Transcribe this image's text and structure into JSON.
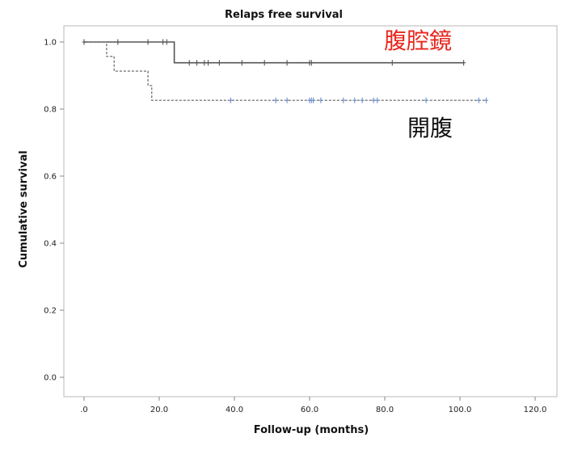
{
  "chart_data": {
    "type": "line",
    "title": "Relaps free survival",
    "xlabel": "Follow-up (months)",
    "ylabel": "Cumulative survival",
    "xlim": [
      0,
      120
    ],
    "ylim": [
      0,
      1.0
    ],
    "x_ticks": [
      0,
      20,
      40,
      60,
      80,
      100,
      120
    ],
    "x_tick_labels": [
      ".0",
      "20.0",
      "40.0",
      "60.0",
      "80.0",
      "100.0",
      "120.0"
    ],
    "y_ticks": [
      0,
      0.2,
      0.4,
      0.6,
      0.8,
      1.0
    ],
    "y_tick_labels": [
      "0.0",
      "0.2",
      "0.4",
      "0.6",
      "0.8",
      "1.0"
    ],
    "grid": false,
    "colors": {
      "laparoscopic": "#555555",
      "open": "#7a7a7a",
      "open_censor": "#6f8fc8",
      "annotation_red": "#e8261c",
      "annotation_black": "#111111"
    },
    "series": [
      {
        "name": "腹腔鏡",
        "style": "solid",
        "steps": [
          [
            0,
            1.0
          ],
          [
            24,
            1.0
          ],
          [
            24,
            0.938
          ],
          [
            101,
            0.938
          ]
        ],
        "censored": [
          {
            "x": 0,
            "y": 1.0
          },
          {
            "x": 9,
            "y": 1.0
          },
          {
            "x": 17,
            "y": 1.0
          },
          {
            "x": 21,
            "y": 1.0
          },
          {
            "x": 22,
            "y": 1.0
          },
          {
            "x": 28,
            "y": 0.938
          },
          {
            "x": 30,
            "y": 0.938
          },
          {
            "x": 32,
            "y": 0.938
          },
          {
            "x": 33,
            "y": 0.938
          },
          {
            "x": 36,
            "y": 0.938
          },
          {
            "x": 42,
            "y": 0.938
          },
          {
            "x": 48,
            "y": 0.938
          },
          {
            "x": 54,
            "y": 0.938
          },
          {
            "x": 60,
            "y": 0.938
          },
          {
            "x": 60.5,
            "y": 0.938
          },
          {
            "x": 82,
            "y": 0.938
          },
          {
            "x": 101,
            "y": 0.938
          }
        ]
      },
      {
        "name": "開腹",
        "style": "dashed",
        "steps": [
          [
            0,
            1.0
          ],
          [
            6,
            1.0
          ],
          [
            6,
            0.957
          ],
          [
            8,
            0.957
          ],
          [
            8,
            0.913
          ],
          [
            17,
            0.913
          ],
          [
            17,
            0.87
          ],
          [
            18,
            0.87
          ],
          [
            18,
            0.826
          ],
          [
            107,
            0.826
          ]
        ],
        "censored": [
          {
            "x": 39,
            "y": 0.826
          },
          {
            "x": 51,
            "y": 0.826
          },
          {
            "x": 54,
            "y": 0.826
          },
          {
            "x": 60,
            "y": 0.826
          },
          {
            "x": 60.5,
            "y": 0.826
          },
          {
            "x": 61,
            "y": 0.826
          },
          {
            "x": 63,
            "y": 0.826
          },
          {
            "x": 69,
            "y": 0.826
          },
          {
            "x": 72,
            "y": 0.826
          },
          {
            "x": 74,
            "y": 0.826
          },
          {
            "x": 77,
            "y": 0.826
          },
          {
            "x": 78,
            "y": 0.826
          },
          {
            "x": 91,
            "y": 0.826
          },
          {
            "x": 105,
            "y": 0.826
          },
          {
            "x": 107,
            "y": 0.826
          }
        ]
      }
    ]
  }
}
